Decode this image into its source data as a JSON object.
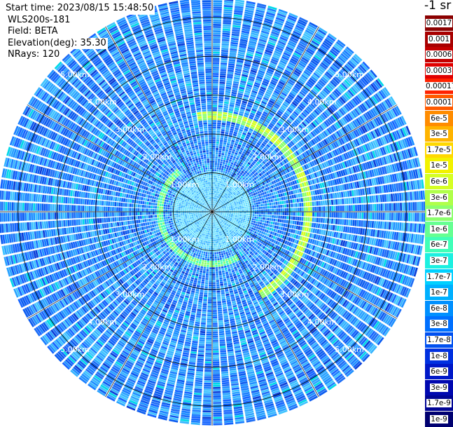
{
  "header": {
    "start_time": "Start time: 2023/08/15 15:48:50",
    "device": "WLS200s-181",
    "field": "Field: BETA",
    "elevation": "Elevation(deg): 35.30",
    "nrays": "NRays: 120"
  },
  "colorbar": {
    "units": "-1 sr",
    "labels": [
      "0.0017",
      "0.001",
      "0.0006",
      "0.0003",
      "0.00017",
      "0.0001",
      "6e-5",
      "3e-5",
      "1.7e-5",
      "1e-5",
      "6e-6",
      "3e-6",
      "1.7e-6",
      "1e-6",
      "6e-7",
      "3e-7",
      "1.7e-7",
      "1e-7",
      "6e-8",
      "3e-8",
      "1.7e-8",
      "1e-8",
      "6e-9",
      "3e-9",
      "1.7e-9",
      "1e-9"
    ],
    "colors": [
      "#8b0000",
      "#a80000",
      "#c40000",
      "#e10000",
      "#ff2200",
      "#ff5a00",
      "#ff8c00",
      "#ffb400",
      "#ffd800",
      "#f2f200",
      "#d6ff24",
      "#b0ff4a",
      "#8cff6e",
      "#66ff92",
      "#40ffb8",
      "#1cf0e0",
      "#00d0ff",
      "#00b0ff",
      "#0090ff",
      "#0070ff",
      "#0050f0",
      "#0030e0",
      "#0018c8",
      "#0008b0",
      "#000494",
      "#000070"
    ]
  },
  "chart_data": {
    "type": "heatmap",
    "projection": "polar (PPI)",
    "field": "BETA",
    "units": "-1 sr",
    "nrays": 120,
    "max_range_km": 5.5,
    "range_rings_km": [
      1.0,
      2.0,
      3.0,
      4.0,
      5.0
    ],
    "ring_labels": [
      "1.00km",
      "2.00km",
      "3.00km",
      "4.00km",
      "5.00km"
    ],
    "spokes_deg": [
      0,
      30,
      60,
      90,
      120,
      150,
      180,
      210,
      240,
      270,
      300,
      330
    ],
    "background_level": "3e-8 to 1.7e-7",
    "features": [
      {
        "name": "aerosol ring",
        "range_km": 2.45,
        "azimuth_deg": [
          -10,
          150
        ],
        "level": "6e-6 to 1e-5"
      },
      {
        "name": "inner ring",
        "range_km": 1.3,
        "azimuth_deg": [
          150,
          320
        ],
        "level": "1e-6 to 3e-6"
      }
    ]
  }
}
